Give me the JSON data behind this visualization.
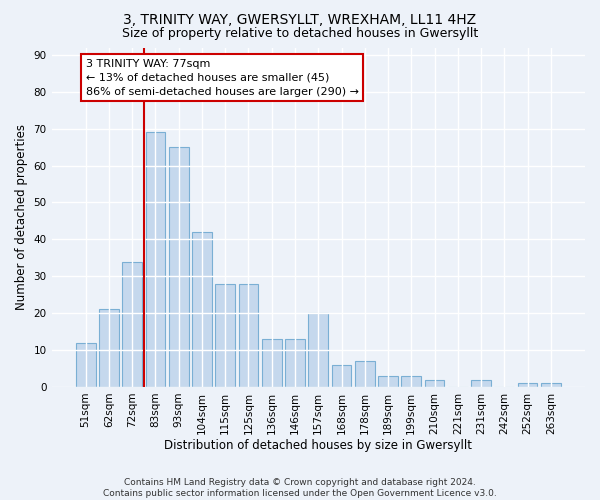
{
  "title": "3, TRINITY WAY, GWERSYLLT, WREXHAM, LL11 4HZ",
  "subtitle": "Size of property relative to detached houses in Gwersyllt",
  "xlabel": "Distribution of detached houses by size in Gwersyllt",
  "ylabel": "Number of detached properties",
  "categories": [
    "51sqm",
    "62sqm",
    "72sqm",
    "83sqm",
    "93sqm",
    "104sqm",
    "115sqm",
    "125sqm",
    "136sqm",
    "146sqm",
    "157sqm",
    "168sqm",
    "178sqm",
    "189sqm",
    "199sqm",
    "210sqm",
    "221sqm",
    "231sqm",
    "242sqm",
    "252sqm",
    "263sqm"
  ],
  "values": [
    12,
    21,
    34,
    69,
    65,
    42,
    28,
    28,
    13,
    13,
    20,
    6,
    7,
    3,
    3,
    2,
    0,
    2,
    0,
    1,
    1
  ],
  "bar_color": "#c5d8ed",
  "bar_edge_color": "#7aafd4",
  "vline_x": 2.5,
  "vline_color": "#cc0000",
  "annotation_text": "3 TRINITY WAY: 77sqm\n← 13% of detached houses are smaller (45)\n86% of semi-detached houses are larger (290) →",
  "annotation_box_color": "#ffffff",
  "annotation_box_edge": "#cc0000",
  "ylim": [
    0,
    92
  ],
  "yticks": [
    0,
    10,
    20,
    30,
    40,
    50,
    60,
    70,
    80,
    90
  ],
  "footer": "Contains HM Land Registry data © Crown copyright and database right 2024.\nContains public sector information licensed under the Open Government Licence v3.0.",
  "bg_color": "#edf2f9",
  "grid_color": "#ffffff",
  "title_fontsize": 10,
  "subtitle_fontsize": 9,
  "axis_label_fontsize": 8.5,
  "tick_fontsize": 7.5,
  "footer_fontsize": 6.5,
  "annot_fontsize": 8
}
